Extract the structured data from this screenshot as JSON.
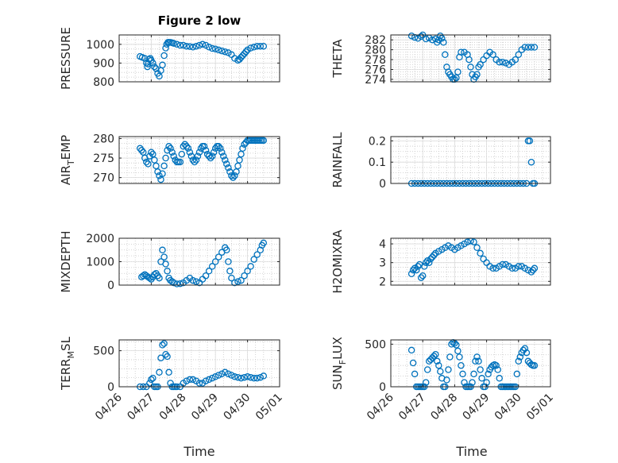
{
  "figure": {
    "title": "Figure 2 low",
    "xlabel": "Time",
    "x_tick_labels": [
      "04/26",
      "04/27",
      "04/28",
      "04/29",
      "04/30",
      "05/01"
    ],
    "marker_color": "#0072BD"
  },
  "chart_data": [
    {
      "type": "scatter",
      "ylabel": "PRESSURE",
      "ylim": [
        800,
        1050
      ],
      "yticks": [
        800,
        900,
        1000
      ],
      "xlim": [
        0,
        5
      ],
      "grid": true,
      "marker": "open-circle",
      "x": [
        0.65,
        0.72,
        0.8,
        0.85,
        0.88,
        0.9,
        0.93,
        0.97,
        1.0,
        1.05,
        1.1,
        1.15,
        1.2,
        1.25,
        1.3,
        1.35,
        1.4,
        1.45,
        1.48,
        1.52,
        1.55,
        1.6,
        1.65,
        1.7,
        1.8,
        1.9,
        2.0,
        2.1,
        2.2,
        2.3,
        2.4,
        2.5,
        2.6,
        2.7,
        2.8,
        2.9,
        3.0,
        3.1,
        3.2,
        3.3,
        3.4,
        3.5,
        3.6,
        3.7,
        3.75,
        3.8,
        3.85,
        3.9,
        3.95,
        4.0,
        4.1,
        4.2,
        4.3,
        4.4,
        4.5
      ],
      "y": [
        935,
        930,
        925,
        900,
        880,
        895,
        920,
        925,
        915,
        900,
        880,
        870,
        845,
        830,
        860,
        890,
        940,
        980,
        1000,
        1010,
        1010,
        1010,
        1008,
        1005,
        1000,
        995,
        995,
        990,
        988,
        985,
        990,
        995,
        1000,
        995,
        985,
        978,
        975,
        970,
        965,
        960,
        955,
        945,
        925,
        915,
        920,
        930,
        940,
        950,
        960,
        970,
        980,
        985,
        990,
        990,
        990
      ]
    },
    {
      "type": "scatter",
      "ylabel": "THETA",
      "ylim": [
        273.5,
        283
      ],
      "yticks": [
        274,
        276,
        278,
        280,
        282
      ],
      "xlim": [
        0,
        5
      ],
      "grid": true,
      "marker": "open-circle",
      "x": [
        0.65,
        0.75,
        0.85,
        0.95,
        1.0,
        1.1,
        1.2,
        1.3,
        1.4,
        1.45,
        1.5,
        1.55,
        1.6,
        1.65,
        1.7,
        1.75,
        1.8,
        1.85,
        1.9,
        1.95,
        2.0,
        2.05,
        2.1,
        2.15,
        2.2,
        2.3,
        2.4,
        2.45,
        2.5,
        2.55,
        2.6,
        2.65,
        2.7,
        2.75,
        2.8,
        2.9,
        3.0,
        3.1,
        3.2,
        3.3,
        3.4,
        3.5,
        3.6,
        3.7,
        3.8,
        3.9,
        4.0,
        4.1,
        4.2,
        4.3,
        4.4,
        4.5
      ],
      "y": [
        282.8,
        282.5,
        282.3,
        282.7,
        283.0,
        282.2,
        282.4,
        282.0,
        282.2,
        281.5,
        282.0,
        282.8,
        282.3,
        281.5,
        279.0,
        276.5,
        275.5,
        275.0,
        274.5,
        274.0,
        274.0,
        274.3,
        275.5,
        278.5,
        279.5,
        279.5,
        279.0,
        278.0,
        276.5,
        275.0,
        274.0,
        274.5,
        275.0,
        276.5,
        277.0,
        278.0,
        278.8,
        279.5,
        279.0,
        278.0,
        277.5,
        277.5,
        277.3,
        277.0,
        277.5,
        278.0,
        279.0,
        280.0,
        280.5,
        280.5,
        280.5,
        280.5
      ]
    },
    {
      "type": "scatter",
      "ylabel": "AIR_TEMP",
      "ylim": [
        268.5,
        280.5
      ],
      "yticks": [
        270,
        275,
        280
      ],
      "xlim": [
        0,
        5
      ],
      "grid": true,
      "marker": "open-circle",
      "x": [
        0.65,
        0.7,
        0.75,
        0.8,
        0.85,
        0.9,
        0.95,
        1.0,
        1.05,
        1.1,
        1.15,
        1.2,
        1.25,
        1.3,
        1.35,
        1.4,
        1.45,
        1.5,
        1.55,
        1.6,
        1.65,
        1.7,
        1.75,
        1.8,
        1.85,
        1.9,
        1.95,
        2.0,
        2.05,
        2.1,
        2.15,
        2.2,
        2.25,
        2.3,
        2.35,
        2.4,
        2.45,
        2.5,
        2.55,
        2.6,
        2.65,
        2.7,
        2.75,
        2.8,
        2.85,
        2.9,
        2.95,
        3.0,
        3.05,
        3.1,
        3.15,
        3.2,
        3.25,
        3.3,
        3.35,
        3.4,
        3.45,
        3.5,
        3.55,
        3.6,
        3.65,
        3.7,
        3.75,
        3.8,
        3.85,
        3.9,
        3.95,
        4.0,
        4.05,
        4.1,
        4.15,
        4.2,
        4.25,
        4.3,
        4.35,
        4.4,
        4.45,
        4.5
      ],
      "y": [
        277.5,
        277.0,
        276.5,
        275.0,
        274.0,
        273.5,
        275.5,
        276.5,
        276.0,
        274.5,
        273.0,
        271.5,
        270.5,
        269.5,
        271.0,
        273.0,
        275.0,
        277.0,
        278.0,
        277.5,
        276.5,
        275.5,
        274.5,
        274.0,
        274.0,
        274.0,
        276.0,
        278.0,
        278.5,
        278.0,
        277.5,
        276.5,
        275.5,
        274.5,
        274.0,
        274.5,
        275.5,
        276.5,
        277.5,
        278.0,
        278.0,
        277.0,
        276.0,
        275.5,
        275.0,
        275.5,
        276.5,
        277.5,
        278.0,
        278.0,
        277.5,
        276.5,
        275.5,
        274.5,
        273.5,
        272.5,
        271.5,
        270.5,
        270.0,
        270.5,
        271.5,
        273.0,
        274.5,
        276.0,
        277.5,
        278.5,
        279.0,
        279.5,
        279.5,
        279.5,
        279.5,
        279.5,
        279.5,
        279.5,
        279.5,
        279.5,
        279.5,
        279.5
      ]
    },
    {
      "type": "scatter",
      "ylabel": "RAINFALL",
      "ylim": [
        0,
        0.22
      ],
      "yticks": [
        0,
        0.1,
        0.2
      ],
      "xlim": [
        0,
        5
      ],
      "grid": true,
      "marker": "open-circle",
      "x": [
        0.65,
        0.75,
        0.85,
        0.95,
        1.05,
        1.15,
        1.25,
        1.35,
        1.45,
        1.55,
        1.65,
        1.75,
        1.85,
        1.95,
        2.05,
        2.15,
        2.25,
        2.35,
        2.45,
        2.55,
        2.65,
        2.75,
        2.85,
        2.95,
        3.05,
        3.15,
        3.25,
        3.35,
        3.45,
        3.55,
        3.65,
        3.75,
        3.85,
        3.95,
        4.05,
        4.15,
        4.25,
        4.3,
        4.35,
        4.4,
        4.45,
        4.5
      ],
      "y": [
        0,
        0,
        0,
        0,
        0,
        0,
        0,
        0,
        0,
        0,
        0,
        0,
        0,
        0,
        0,
        0,
        0,
        0,
        0,
        0,
        0,
        0,
        0,
        0,
        0,
        0,
        0,
        0,
        0,
        0,
        0,
        0,
        0,
        0,
        0,
        0,
        0,
        0.2,
        0.2,
        0.1,
        0,
        0
      ]
    },
    {
      "type": "scatter",
      "ylabel": "MIXDEPTH",
      "ylim": [
        0,
        2000
      ],
      "yticks": [
        0,
        1000,
        2000
      ],
      "xlim": [
        0,
        5
      ],
      "grid": true,
      "marker": "open-circle",
      "x": [
        0.7,
        0.75,
        0.8,
        0.85,
        0.9,
        0.95,
        1.0,
        1.05,
        1.1,
        1.15,
        1.2,
        1.25,
        1.3,
        1.35,
        1.4,
        1.45,
        1.5,
        1.55,
        1.6,
        1.65,
        1.7,
        1.8,
        1.9,
        2.0,
        2.1,
        2.2,
        2.3,
        2.4,
        2.5,
        2.6,
        2.7,
        2.8,
        2.9,
        3.0,
        3.1,
        3.2,
        3.3,
        3.35,
        3.4,
        3.45,
        3.5,
        3.6,
        3.7,
        3.8,
        3.9,
        4.0,
        4.1,
        4.2,
        4.3,
        4.4,
        4.45,
        4.5
      ],
      "y": [
        350,
        400,
        450,
        400,
        350,
        300,
        250,
        350,
        450,
        500,
        400,
        300,
        1000,
        1500,
        1200,
        900,
        600,
        300,
        200,
        150,
        100,
        50,
        60,
        100,
        200,
        300,
        200,
        150,
        100,
        250,
        400,
        600,
        800,
        1000,
        1200,
        1400,
        1600,
        1500,
        1000,
        600,
        300,
        100,
        150,
        200,
        400,
        600,
        800,
        1100,
        1300,
        1500,
        1700,
        1800
      ]
    },
    {
      "type": "scatter",
      "ylabel": "H2OMIXRA",
      "ylim": [
        1.8,
        4.3
      ],
      "yticks": [
        2,
        3,
        4
      ],
      "xlim": [
        0,
        5
      ],
      "grid": true,
      "marker": "open-circle",
      "x": [
        0.65,
        0.7,
        0.75,
        0.8,
        0.85,
        0.9,
        0.95,
        1.0,
        1.05,
        1.1,
        1.15,
        1.2,
        1.25,
        1.3,
        1.35,
        1.4,
        1.5,
        1.6,
        1.7,
        1.8,
        1.9,
        2.0,
        2.1,
        2.2,
        2.3,
        2.4,
        2.5,
        2.6,
        2.7,
        2.8,
        2.9,
        3.0,
        3.1,
        3.2,
        3.3,
        3.4,
        3.5,
        3.6,
        3.7,
        3.8,
        3.9,
        4.0,
        4.1,
        4.2,
        4.3,
        4.4,
        4.45,
        4.5
      ],
      "y": [
        2.4,
        2.6,
        2.7,
        2.6,
        2.8,
        2.9,
        2.2,
        2.3,
        2.8,
        3.0,
        3.1,
        3.0,
        3.2,
        3.3,
        3.4,
        3.5,
        3.6,
        3.7,
        3.8,
        3.9,
        3.8,
        3.7,
        3.8,
        3.9,
        4.0,
        4.1,
        4.15,
        4.1,
        3.8,
        3.5,
        3.2,
        3.0,
        2.8,
        2.7,
        2.7,
        2.8,
        2.9,
        2.9,
        2.8,
        2.7,
        2.7,
        2.8,
        2.8,
        2.7,
        2.6,
        2.5,
        2.6,
        2.7
      ]
    },
    {
      "type": "scatter",
      "ylabel": "TERR_MSL",
      "ylim": [
        0,
        650
      ],
      "yticks": [
        0,
        500
      ],
      "xlim": [
        0,
        5
      ],
      "grid": true,
      "marker": "open-circle",
      "x": [
        0.65,
        0.75,
        0.85,
        0.95,
        1.0,
        1.05,
        1.1,
        1.15,
        1.2,
        1.25,
        1.3,
        1.35,
        1.4,
        1.45,
        1.5,
        1.55,
        1.6,
        1.65,
        1.7,
        1.75,
        1.8,
        1.9,
        2.0,
        2.1,
        2.2,
        2.3,
        2.4,
        2.5,
        2.6,
        2.7,
        2.8,
        2.9,
        3.0,
        3.1,
        3.2,
        3.3,
        3.4,
        3.5,
        3.6,
        3.7,
        3.8,
        3.9,
        4.0,
        4.1,
        4.2,
        4.3,
        4.4,
        4.5
      ],
      "y": [
        0,
        0,
        0,
        50,
        100,
        120,
        0,
        0,
        0,
        200,
        400,
        580,
        600,
        450,
        420,
        200,
        50,
        0,
        0,
        0,
        0,
        0,
        50,
        80,
        100,
        100,
        80,
        50,
        50,
        80,
        100,
        120,
        140,
        160,
        180,
        200,
        180,
        160,
        140,
        130,
        120,
        130,
        140,
        130,
        120,
        120,
        130,
        150
      ]
    },
    {
      "type": "scatter",
      "ylabel": "SUN_FLUX",
      "ylim": [
        0,
        550
      ],
      "yticks": [
        0,
        500
      ],
      "xlim": [
        0,
        5
      ],
      "grid": true,
      "marker": "open-circle",
      "x": [
        0.65,
        0.7,
        0.75,
        0.8,
        0.85,
        0.9,
        0.95,
        1.0,
        1.05,
        1.1,
        1.15,
        1.2,
        1.25,
        1.3,
        1.35,
        1.4,
        1.45,
        1.5,
        1.55,
        1.6,
        1.65,
        1.7,
        1.75,
        1.8,
        1.85,
        1.9,
        1.95,
        2.0,
        2.05,
        2.1,
        2.15,
        2.2,
        2.25,
        2.3,
        2.35,
        2.4,
        2.45,
        2.5,
        2.55,
        2.6,
        2.65,
        2.7,
        2.75,
        2.8,
        2.85,
        2.9,
        2.95,
        3.0,
        3.05,
        3.1,
        3.15,
        3.2,
        3.25,
        3.3,
        3.35,
        3.4,
        3.45,
        3.5,
        3.55,
        3.6,
        3.65,
        3.7,
        3.75,
        3.8,
        3.85,
        3.9,
        3.95,
        4.0,
        4.05,
        4.1,
        4.15,
        4.2,
        4.25,
        4.3,
        4.35,
        4.4,
        4.45,
        4.5
      ],
      "y": [
        430,
        280,
        150,
        0,
        0,
        0,
        0,
        0,
        0,
        50,
        200,
        300,
        320,
        340,
        360,
        380,
        300,
        250,
        180,
        100,
        0,
        0,
        80,
        200,
        350,
        500,
        520,
        510,
        490,
        420,
        350,
        250,
        150,
        50,
        0,
        0,
        0,
        0,
        50,
        150,
        300,
        350,
        300,
        200,
        100,
        0,
        0,
        50,
        150,
        200,
        230,
        250,
        260,
        250,
        200,
        100,
        0,
        0,
        0,
        0,
        0,
        0,
        0,
        0,
        0,
        0,
        150,
        300,
        350,
        400,
        430,
        450,
        400,
        300,
        280,
        260,
        250,
        250
      ]
    }
  ]
}
